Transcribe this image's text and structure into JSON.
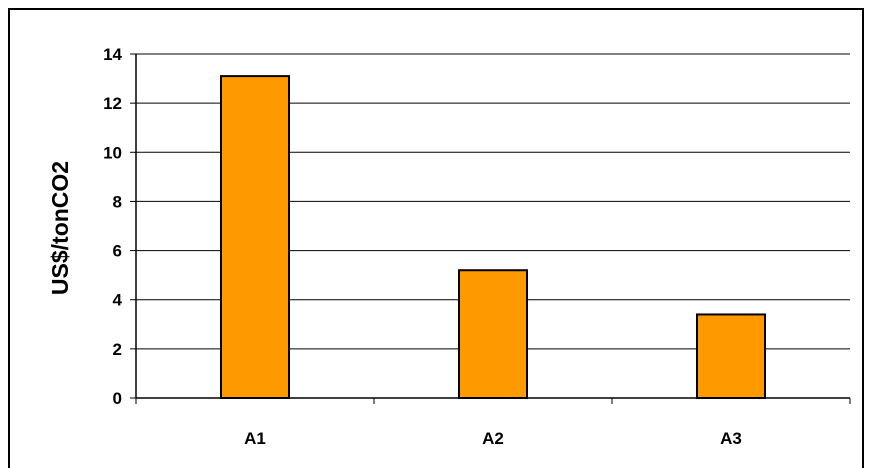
{
  "chart_data": {
    "type": "bar",
    "categories": [
      "A1",
      "A2",
      "A3"
    ],
    "values": [
      13.1,
      5.2,
      3.4
    ],
    "ylabel": "US$/tonCO2",
    "xlabel": "",
    "ylim": [
      0,
      14
    ],
    "yticks": [
      0,
      2,
      4,
      6,
      8,
      10,
      12,
      14
    ],
    "grid": true,
    "bar_color": "#FF9900",
    "bar_border_color": "#000000"
  }
}
